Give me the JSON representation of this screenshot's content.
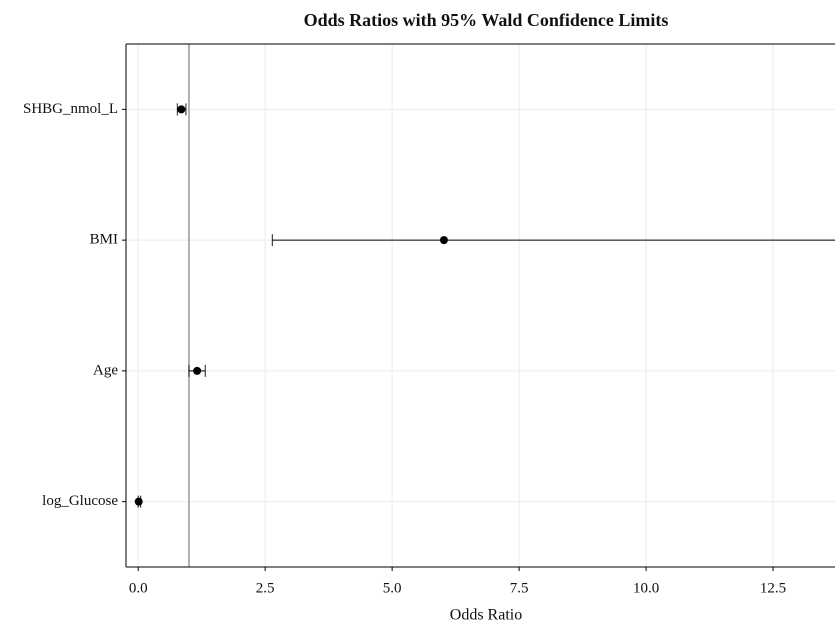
{
  "chart_data": {
    "type": "forest",
    "title": "Odds Ratios with 95% Wald Confidence Limits",
    "x_label": "Odds Ratio",
    "categories": [
      "SHBG_nmol_L",
      "BMI",
      "Age",
      "log_Glucose"
    ],
    "values": [
      0.85,
      6.02,
      1.16,
      0.01
    ],
    "lower": [
      0.77,
      2.64,
      1.0,
      0.0
    ],
    "upper": [
      0.94,
      14.0,
      1.32,
      0.05
    ],
    "reference": 1,
    "xlim": [
      -0.24,
      13.72
    ],
    "xticks": [
      {
        "value": 0,
        "label": "0.0"
      },
      2.5,
      {
        "value": 5,
        "label": "5.0"
      },
      7.5,
      {
        "value": 10,
        "label": "10.0"
      },
      12.5
    ],
    "grid": true,
    "color": "#000000"
  }
}
